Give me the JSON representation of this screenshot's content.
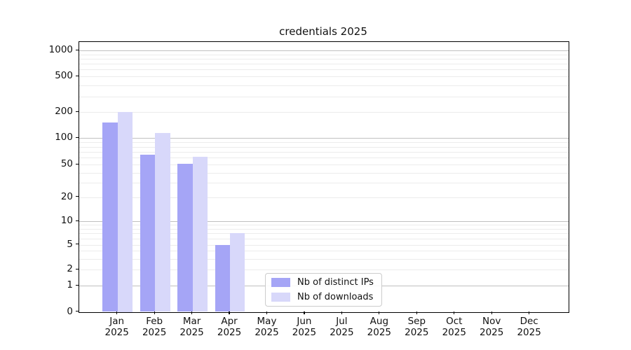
{
  "chart_data": {
    "type": "bar",
    "title": "credentials 2025",
    "categories": [
      "Jan",
      "Feb",
      "Mar",
      "Apr",
      "May",
      "Jun",
      "Jul",
      "Aug",
      "Sep",
      "Oct",
      "Nov",
      "Dec"
    ],
    "category_year": "2025",
    "series": [
      {
        "name": "Nb of distinct IPs",
        "color": "#a5a5f6",
        "values": [
          150,
          65,
          51,
          5,
          0,
          0,
          0,
          0,
          0,
          0,
          0,
          0
        ]
      },
      {
        "name": "Nb of downloads",
        "color": "#d8d8fa",
        "values": [
          200,
          115,
          61,
          7,
          0,
          0,
          0,
          0,
          0,
          0,
          0,
          0
        ]
      }
    ],
    "yscale": "symlog",
    "yticks": [
      0,
      1,
      2,
      5,
      10,
      20,
      50,
      100,
      200,
      500,
      1000
    ],
    "ylim": [
      0,
      1400
    ],
    "grid": true,
    "legend_position": "lower center",
    "colors": {
      "grid_decade": "#c0c0c0",
      "grid_minor": "#ececec",
      "axis": "#000000",
      "background": "#ffffff"
    }
  }
}
